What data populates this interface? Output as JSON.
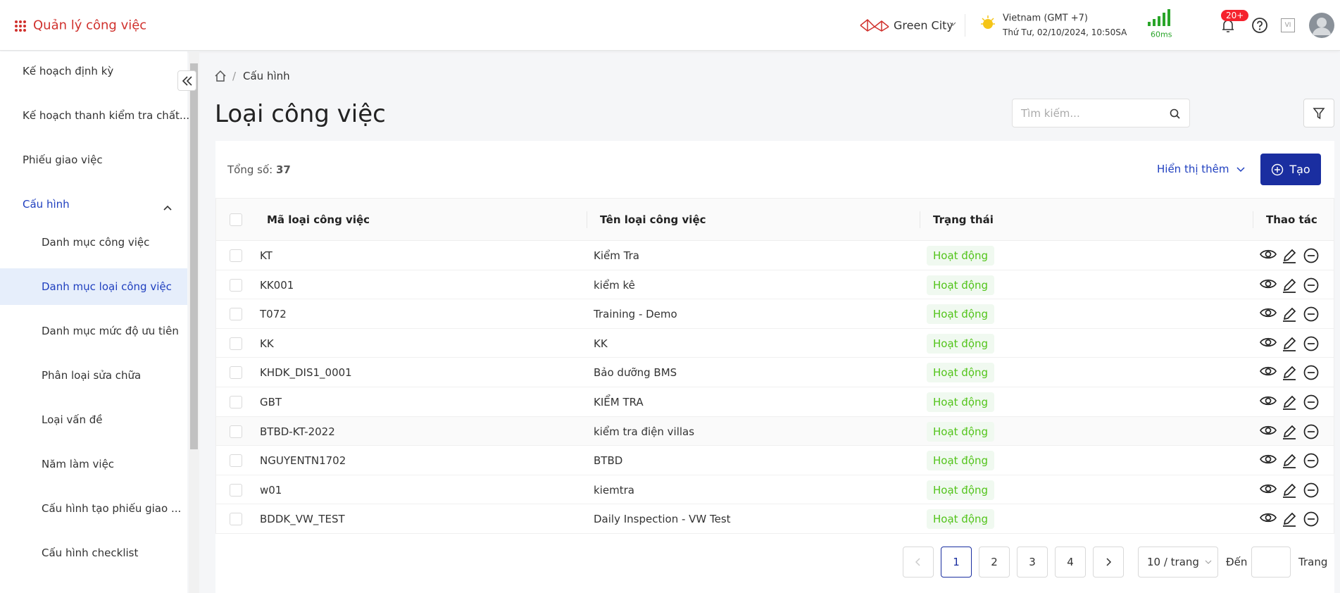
{
  "header": {
    "app_title": "Quản lý công việc",
    "site": "Green City",
    "timezone": "Vietnam (GMT +7)",
    "datetime": "Thứ Tư, 02/10/2024, 10:50SA",
    "latency": "60ms",
    "notification_badge": "20+",
    "language": "VI"
  },
  "sidebar": {
    "items": [
      {
        "label": "Kế hoạch định kỳ"
      },
      {
        "label": "Kế hoạch thanh kiểm tra chất..."
      },
      {
        "label": "Phiếu giao việc"
      },
      {
        "label": "Cấu hình",
        "expanded": true,
        "children": [
          {
            "label": "Danh mục công việc"
          },
          {
            "label": "Danh mục loại công việc",
            "active": true
          },
          {
            "label": "Danh mục mức độ ưu tiên"
          },
          {
            "label": "Phân loại sửa chữa"
          },
          {
            "label": "Loại vấn đề"
          },
          {
            "label": "Năm làm việc"
          },
          {
            "label": "Cấu hình tạo phiếu giao ..."
          },
          {
            "label": "Cấu hình checklist"
          }
        ]
      }
    ]
  },
  "breadcrumb": [
    "Cấu hình"
  ],
  "page_title": "Loại công việc",
  "search_placeholder": "Tìm kiếm...",
  "summary": {
    "label": "Tổng số:",
    "count": 37
  },
  "show_more": "Hiển thị thêm",
  "create_button": "Tạo",
  "table": {
    "columns": [
      "Mã loại công việc",
      "Tên loại công việc",
      "Trạng thái",
      "Thao tác"
    ],
    "rows": [
      [
        "KT",
        "Kiểm Tra",
        "Hoạt động"
      ],
      [
        "KK001",
        "kiểm kê",
        "Hoạt động"
      ],
      [
        "T072",
        "Training - Demo",
        "Hoạt động"
      ],
      [
        "KK",
        "KK",
        "Hoạt động"
      ],
      [
        "KHDK_DIS1_0001",
        "Bảo dưỡng BMS",
        "Hoạt động"
      ],
      [
        "GBT",
        "KIỂM TRA",
        "Hoạt động"
      ],
      [
        "BTBD-KT-2022",
        "kiểm tra điện villas",
        "Hoạt động"
      ],
      [
        "NGUYENTN1702",
        "BTBD",
        "Hoạt động"
      ],
      [
        "w01",
        "kiemtra",
        "Hoạt động"
      ],
      [
        "BDDK_VW_TEST",
        "Daily Inspection - VW Test",
        "Hoạt động"
      ]
    ]
  },
  "pagination": {
    "pages": [
      1,
      2,
      3,
      4
    ],
    "page_size": "10 / trang",
    "goto_label": "Đến",
    "page_label": "Trang"
  }
}
